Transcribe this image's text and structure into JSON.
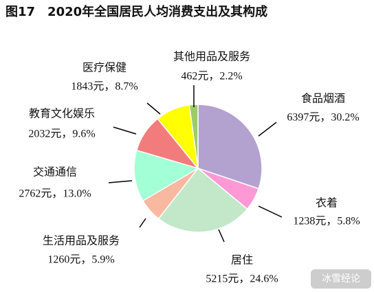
{
  "chart_data": {
    "type": "pie",
    "title": "图17　2020年全国居民人均消费支出及其构成",
    "categories": [
      "食品烟酒",
      "衣着",
      "居住",
      "生活用品及服务",
      "交通通信",
      "教育文化娱乐",
      "医疗保健",
      "其他用品及服务"
    ],
    "values": [
      6397,
      1238,
      5215,
      1260,
      2762,
      2032,
      1843,
      462
    ],
    "value_labels": [
      "6397元，30.2%",
      "1238元，5.8%",
      "5215元，24.6%",
      "1260元，5.9%",
      "2762元，13.0%",
      "2032元，9.6%",
      "1843元，8.7%",
      "462元，2.2%"
    ],
    "colors": [
      "#b3a2cf",
      "#ff99d6",
      "#c2e8c9",
      "#f9b8a0",
      "#a2ffd6",
      "#f27c7c",
      "#ffff00",
      "#9ccc6a"
    ],
    "watermark": "冰雪经论"
  }
}
